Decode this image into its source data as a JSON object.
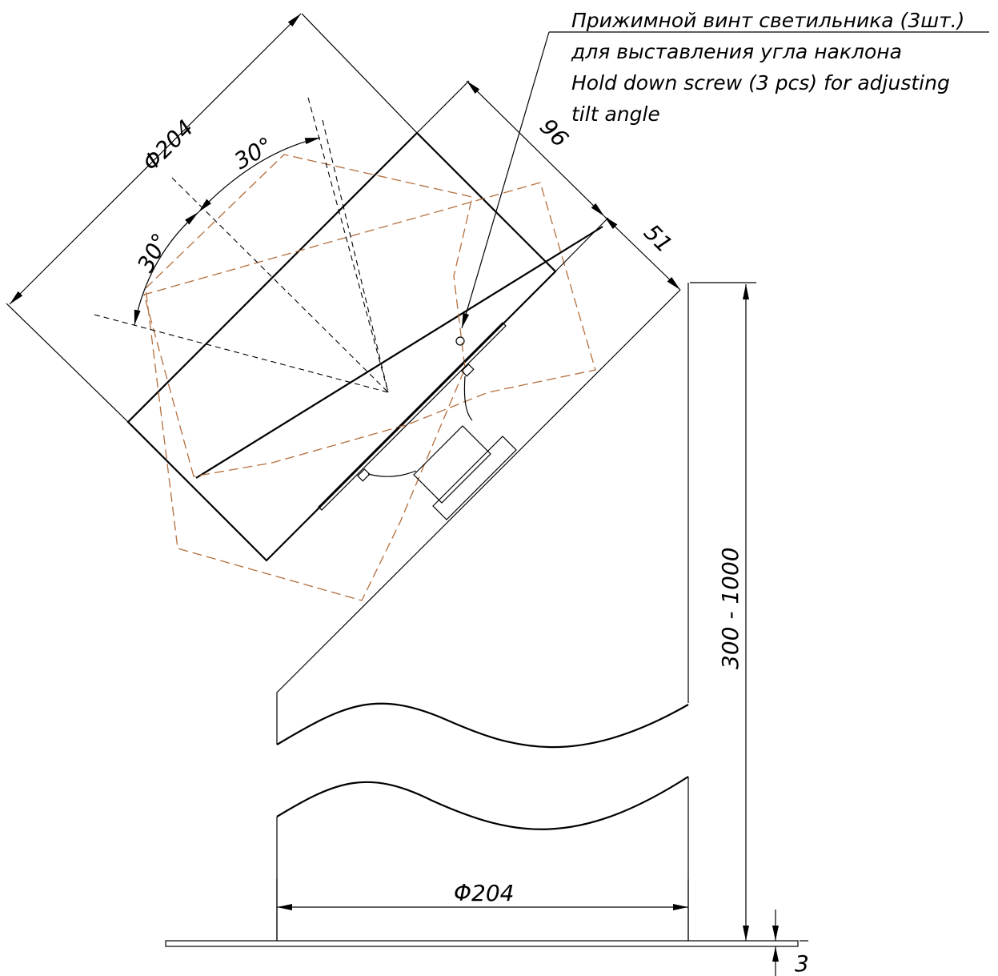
{
  "labels": {
    "lamp_diameter": "Φ204",
    "angle_upper": "30°",
    "angle_lower": "30°",
    "depth_96": "96",
    "depth_51": "51",
    "height_range": "300 - 1000",
    "base_diameter": "Φ204",
    "plate_thickness": "3"
  },
  "note": {
    "line1": "Прижимной винт светильника (3шт.)",
    "line2": "для выставления угла наклона",
    "line3": "Hold down screw (3 pcs) for adjusting",
    "line4": "tilt angle"
  },
  "colors": {
    "line": "#000000",
    "tilt_envelope": "#b46e3c"
  }
}
